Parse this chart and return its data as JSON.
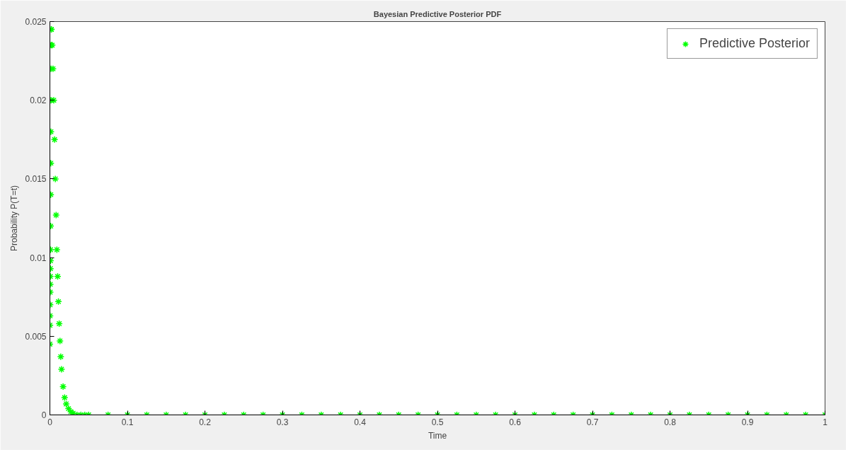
{
  "chart_data": {
    "type": "scatter",
    "title": "Bayesian Predictive Posterior PDF",
    "xlabel": "Time",
    "ylabel": "Probability P(T=t)",
    "xlim": [
      0,
      1
    ],
    "ylim": [
      0,
      0.025
    ],
    "xticks": [
      0,
      0.1,
      0.2,
      0.3,
      0.4,
      0.5,
      0.6,
      0.7,
      0.8,
      0.9,
      1
    ],
    "yticks": [
      0,
      0.005,
      0.01,
      0.015,
      0.02,
      0.025
    ],
    "grid": false,
    "legend": "top right",
    "marker": "cross",
    "series": [
      {
        "name": "Predictive Posterior",
        "color": "#00ff00",
        "x": [
          0,
          0.0001,
          0.0002,
          0.0003,
          0.0004,
          0.0005,
          0.0006,
          0.0007,
          0.0008,
          0.0009,
          0.001,
          0.0011,
          0.0012,
          0.0013,
          0.0014,
          0.0015,
          0.0016,
          0.0017,
          0.002,
          0.003,
          0.004,
          0.005,
          0.006,
          0.007,
          0.008,
          0.009,
          0.01,
          0.011,
          0.012,
          0.013,
          0.014,
          0.015,
          0.017,
          0.019,
          0.021,
          0.024,
          0.027,
          0.03,
          0.035,
          0.04,
          0.045,
          0.05,
          0.075,
          0.1,
          0.125,
          0.15,
          0.175,
          0.2,
          0.225,
          0.25,
          0.275,
          0.3,
          0.325,
          0.35,
          0.375,
          0.4,
          0.425,
          0.45,
          0.475,
          0.5,
          0.525,
          0.55,
          0.575,
          0.6,
          0.625,
          0.65,
          0.675,
          0.7,
          0.725,
          0.75,
          0.775,
          0.8,
          0.825,
          0.85,
          0.875,
          0.9,
          0.925,
          0.95,
          0.975,
          1
        ],
        "values": [
          0.0045,
          0.0057,
          0.0063,
          0.007,
          0.0078,
          0.0083,
          0.0088,
          0.0093,
          0.0098,
          0.0105,
          0.012,
          0.014,
          0.016,
          0.018,
          0.02,
          0.022,
          0.0235,
          0.0245,
          0.0245,
          0.0235,
          0.022,
          0.02,
          0.0175,
          0.015,
          0.0127,
          0.0105,
          0.0088,
          0.0072,
          0.0058,
          0.0047,
          0.0037,
          0.0029,
          0.0018,
          0.0011,
          0.0007,
          0.0004,
          0.0002,
          0.0001,
          0,
          0,
          0,
          0,
          0,
          0,
          0,
          0,
          0,
          0,
          0,
          0,
          0,
          0,
          0,
          0,
          0,
          0,
          0,
          0,
          0,
          0,
          0,
          0,
          0,
          0,
          0,
          0,
          0,
          0,
          0,
          0,
          0,
          0,
          0,
          0,
          0,
          0,
          0,
          0,
          0,
          0
        ]
      }
    ]
  }
}
